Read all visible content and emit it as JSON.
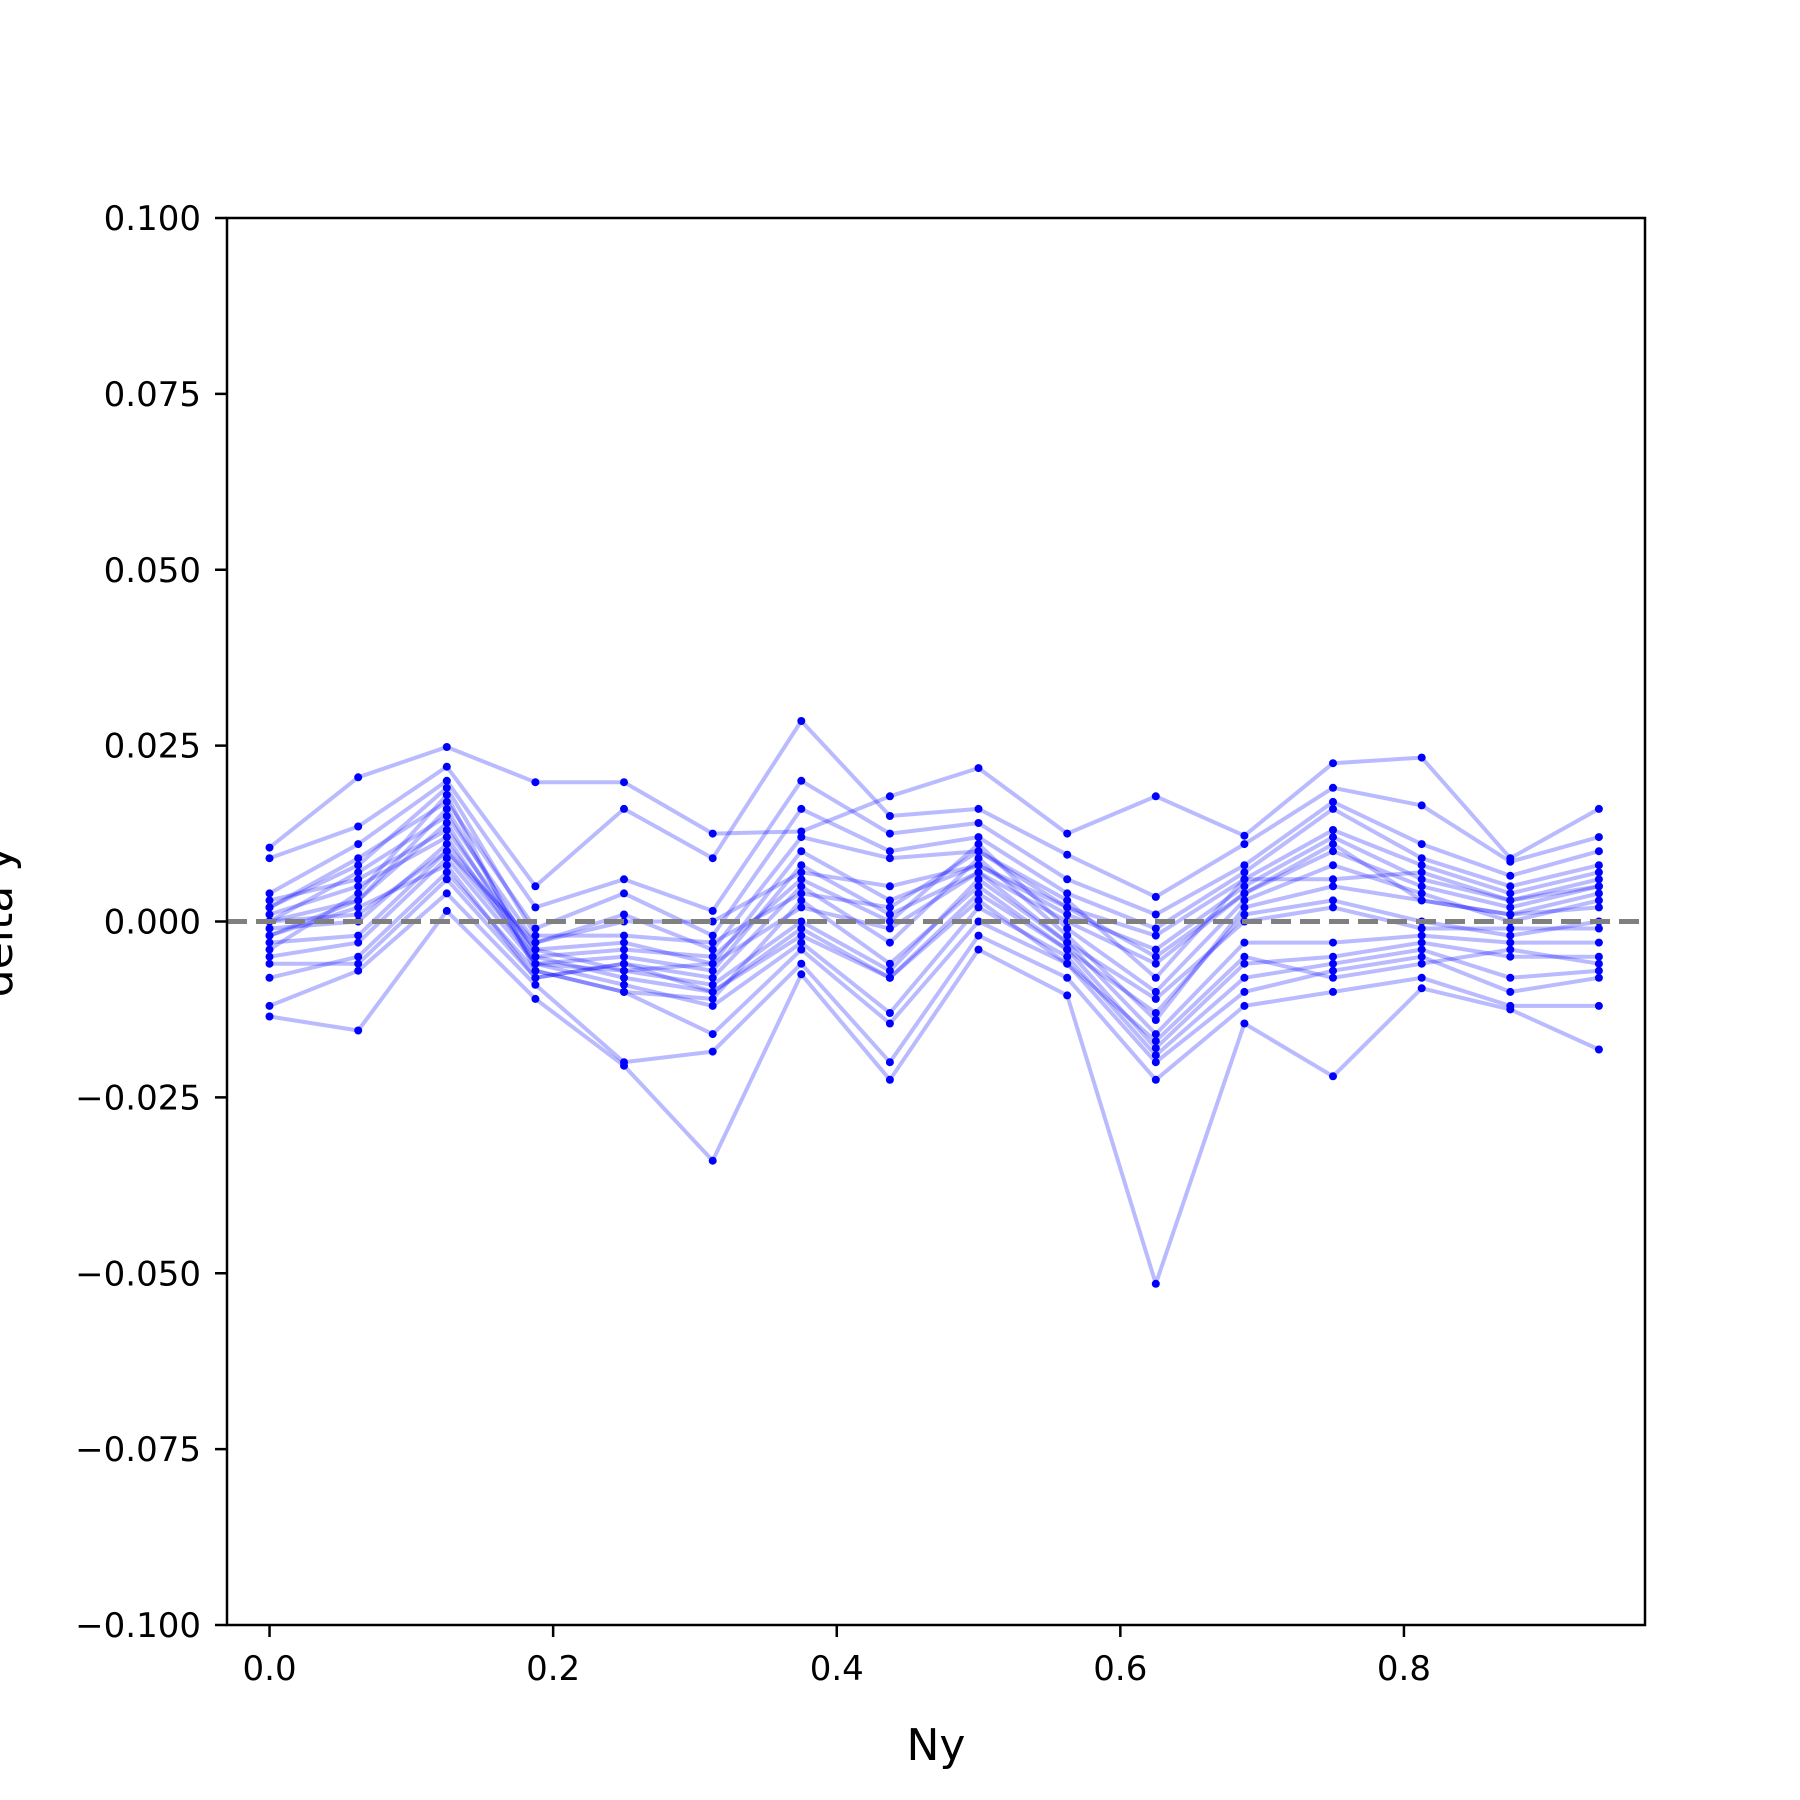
{
  "chart_data": {
    "type": "line",
    "xlabel": "Ny",
    "ylabel": "delta y",
    "xlim": [
      -0.03,
      0.97
    ],
    "ylim": [
      -0.1,
      0.1
    ],
    "x_ticks": [
      0.0,
      0.2,
      0.4,
      0.6,
      0.8
    ],
    "x_tick_labels": [
      "0.0",
      "0.2",
      "0.4",
      "0.6",
      "0.8"
    ],
    "y_ticks": [
      0.1,
      0.075,
      0.05,
      0.025,
      0.0,
      -0.025,
      -0.05,
      -0.075,
      -0.1
    ],
    "y_tick_labels": [
      "0.100",
      "0.075",
      "0.050",
      "0.025",
      "0.000",
      "−0.025",
      "−0.050",
      "−0.075",
      "−0.100"
    ],
    "reference_line": {
      "y": 0.0,
      "style": "dashed",
      "color": "#808080"
    },
    "grid": false,
    "legend": "none",
    "colors": {
      "series": "#0000ff",
      "reference": "#808080"
    },
    "x": [
      0.0,
      0.0625,
      0.125,
      0.1875,
      0.25,
      0.3125,
      0.375,
      0.4375,
      0.5,
      0.5625,
      0.625,
      0.6875,
      0.75,
      0.8125,
      0.875,
      0.9375
    ],
    "series": [
      {
        "values": [
          0.0105,
          0.0205,
          0.0248,
          0.0198,
          0.0198,
          0.0125,
          0.0128,
          0.0178,
          0.0218,
          0.0125,
          0.0178,
          0.0122,
          0.0225,
          0.0233,
          0.009,
          0.016
        ]
      },
      {
        "values": [
          -0.0135,
          -0.0155,
          0.0015,
          -0.011,
          -0.0205,
          -0.034,
          -0.0075,
          -0.0225,
          -0.004,
          -0.0105,
          -0.0515,
          -0.0145,
          -0.022,
          -0.0095,
          -0.0125,
          -0.0182
        ]
      },
      {
        "values": [
          0.009,
          0.0135,
          0.022,
          0.005,
          0.016,
          0.009,
          0.0285,
          0.015,
          0.016,
          0.0095,
          0.0035,
          0.011,
          0.019,
          0.0165,
          0.0085,
          0.012
        ]
      },
      {
        "values": [
          -0.012,
          -0.007,
          0.004,
          -0.009,
          -0.02,
          -0.0185,
          -0.006,
          -0.02,
          -0.002,
          -0.008,
          -0.0225,
          -0.012,
          -0.01,
          -0.008,
          -0.012,
          -0.012
        ]
      },
      {
        "values": [
          0.004,
          0.011,
          0.02,
          0.002,
          0.006,
          0.0015,
          0.02,
          0.0125,
          0.014,
          0.006,
          0.001,
          0.008,
          0.017,
          0.011,
          0.0065,
          0.01
        ]
      },
      {
        "values": [
          -0.008,
          -0.005,
          0.007,
          -0.007,
          -0.01,
          -0.016,
          -0.004,
          -0.0145,
          0.0,
          -0.006,
          -0.02,
          -0.01,
          -0.007,
          -0.005,
          -0.01,
          -0.008
        ]
      },
      {
        "values": [
          0.002,
          0.009,
          0.017,
          -0.001,
          0.004,
          -0.002,
          0.016,
          0.01,
          0.012,
          0.004,
          -0.001,
          0.007,
          0.016,
          0.009,
          0.005,
          0.008
        ]
      },
      {
        "values": [
          -0.005,
          -0.003,
          0.009,
          -0.006,
          -0.009,
          -0.012,
          -0.003,
          -0.013,
          0.002,
          -0.005,
          -0.019,
          -0.008,
          -0.006,
          -0.004,
          -0.008,
          -0.007
        ]
      },
      {
        "values": [
          0.0,
          0.007,
          0.015,
          -0.003,
          0.001,
          -0.004,
          0.012,
          0.009,
          0.01,
          0.002,
          -0.002,
          0.006,
          0.013,
          0.008,
          0.004,
          0.007
        ]
      },
      {
        "values": [
          -0.003,
          -0.002,
          0.01,
          -0.005,
          -0.008,
          -0.01,
          -0.001,
          -0.008,
          0.004,
          -0.004,
          -0.018,
          -0.006,
          -0.005,
          -0.003,
          -0.005,
          -0.005
        ]
      },
      {
        "values": [
          0.003,
          0.006,
          0.013,
          -0.004,
          -0.003,
          -0.006,
          0.01,
          0.003,
          0.008,
          0.001,
          -0.004,
          0.005,
          0.012,
          0.006,
          0.003,
          0.006
        ]
      },
      {
        "values": [
          -0.001,
          0.0,
          0.011,
          -0.004,
          -0.007,
          -0.009,
          0.0,
          -0.007,
          0.006,
          -0.003,
          -0.016,
          -0.003,
          -0.003,
          -0.002,
          -0.003,
          -0.003
        ]
      },
      {
        "values": [
          0.001,
          0.005,
          0.012,
          -0.006,
          -0.005,
          -0.007,
          0.008,
          0.001,
          0.007,
          0.0,
          -0.006,
          0.004,
          0.01,
          0.005,
          0.002,
          0.005
        ]
      },
      {
        "values": [
          -0.002,
          0.002,
          0.008,
          -0.008,
          -0.006,
          -0.008,
          0.005,
          -0.003,
          0.009,
          -0.002,
          -0.014,
          0.002,
          0.005,
          0.003,
          0.001,
          0.004
        ]
      },
      {
        "values": [
          0.0,
          0.003,
          0.016,
          -0.005,
          -0.004,
          -0.005,
          0.006,
          0.0,
          0.011,
          -0.001,
          -0.01,
          0.003,
          0.008,
          0.004,
          0.0,
          0.003
        ]
      },
      {
        "values": [
          -0.004,
          0.004,
          0.018,
          -0.007,
          -0.01,
          -0.011,
          0.003,
          -0.006,
          0.005,
          -0.004,
          -0.013,
          0.001,
          0.003,
          0.0,
          -0.002,
          0.0
        ]
      },
      {
        "values": [
          0.002,
          0.008,
          0.019,
          -0.002,
          -0.002,
          -0.003,
          0.004,
          0.002,
          0.01,
          0.003,
          -0.008,
          0.006,
          0.006,
          0.007,
          0.003,
          0.005
        ]
      },
      {
        "values": [
          -0.006,
          -0.006,
          0.006,
          -0.008,
          -0.006,
          -0.01,
          -0.002,
          -0.008,
          0.003,
          -0.006,
          -0.017,
          -0.005,
          -0.008,
          -0.006,
          -0.004,
          -0.006
        ]
      },
      {
        "values": [
          0.0,
          0.001,
          0.01,
          -0.003,
          0.0,
          0.0,
          0.007,
          0.005,
          0.008,
          0.002,
          -0.005,
          0.004,
          0.011,
          0.003,
          0.001,
          0.002
        ]
      },
      {
        "values": [
          -0.002,
          0.003,
          0.014,
          -0.006,
          -0.007,
          -0.006,
          0.002,
          -0.001,
          0.007,
          -0.003,
          -0.011,
          0.0,
          0.002,
          -0.001,
          -0.001,
          -0.001
        ]
      }
    ]
  }
}
